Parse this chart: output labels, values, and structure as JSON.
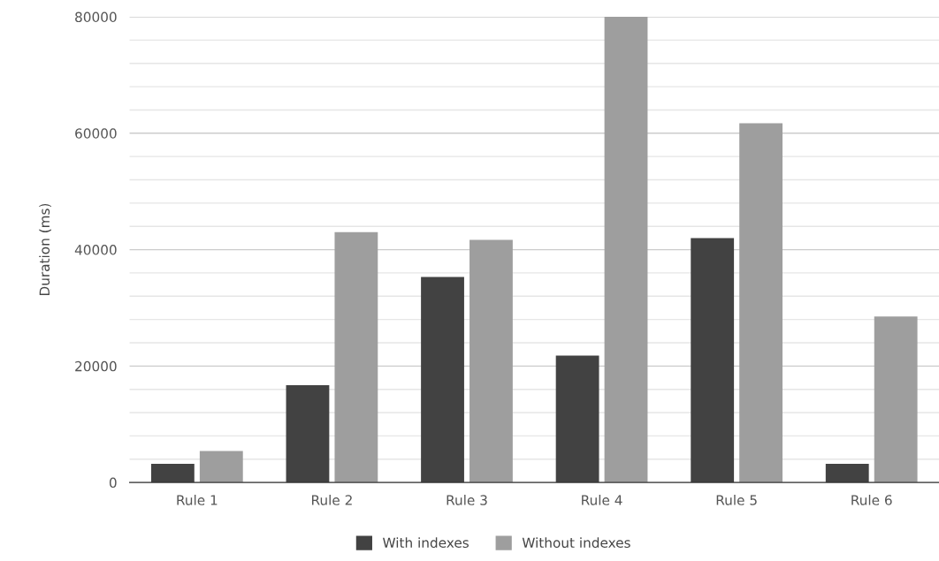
{
  "chart_data": {
    "type": "bar",
    "ylabel": "Duration (ms)",
    "categories": [
      "Rule 1",
      "Rule 2",
      "Rule 3",
      "Rule 4",
      "Rule 5",
      "Rule 6"
    ],
    "series": [
      {
        "name": "With indexes",
        "color": "#424242",
        "values": [
          3200,
          16700,
          35300,
          21800,
          42000,
          3200
        ]
      },
      {
        "name": "Without indexes",
        "color": "#9e9e9e",
        "values": [
          5400,
          43000,
          41700,
          80000,
          61700,
          28500
        ]
      }
    ],
    "ylim": [
      0,
      80000
    ],
    "yticks": [
      0,
      {
        "value": 4000,
        "label": null
      },
      {
        "value": 8000,
        "label": null
      },
      {
        "value": 12000,
        "label": null
      },
      {
        "value": 16000,
        "label": null
      },
      20000,
      {
        "value": 24000,
        "label": null
      },
      {
        "value": 28000,
        "label": null
      },
      {
        "value": 32000,
        "label": null
      },
      {
        "value": 36000,
        "label": null
      },
      40000,
      {
        "value": 44000,
        "label": null
      },
      {
        "value": 48000,
        "label": null
      },
      {
        "value": 52000,
        "label": null
      },
      {
        "value": 56000,
        "label": null
      },
      60000,
      {
        "value": 64000,
        "label": null
      },
      {
        "value": 68000,
        "label": null
      },
      {
        "value": 72000,
        "label": null
      },
      {
        "value": 76000,
        "label": null
      },
      80000
    ],
    "grid": "y",
    "legend": "bottom"
  }
}
